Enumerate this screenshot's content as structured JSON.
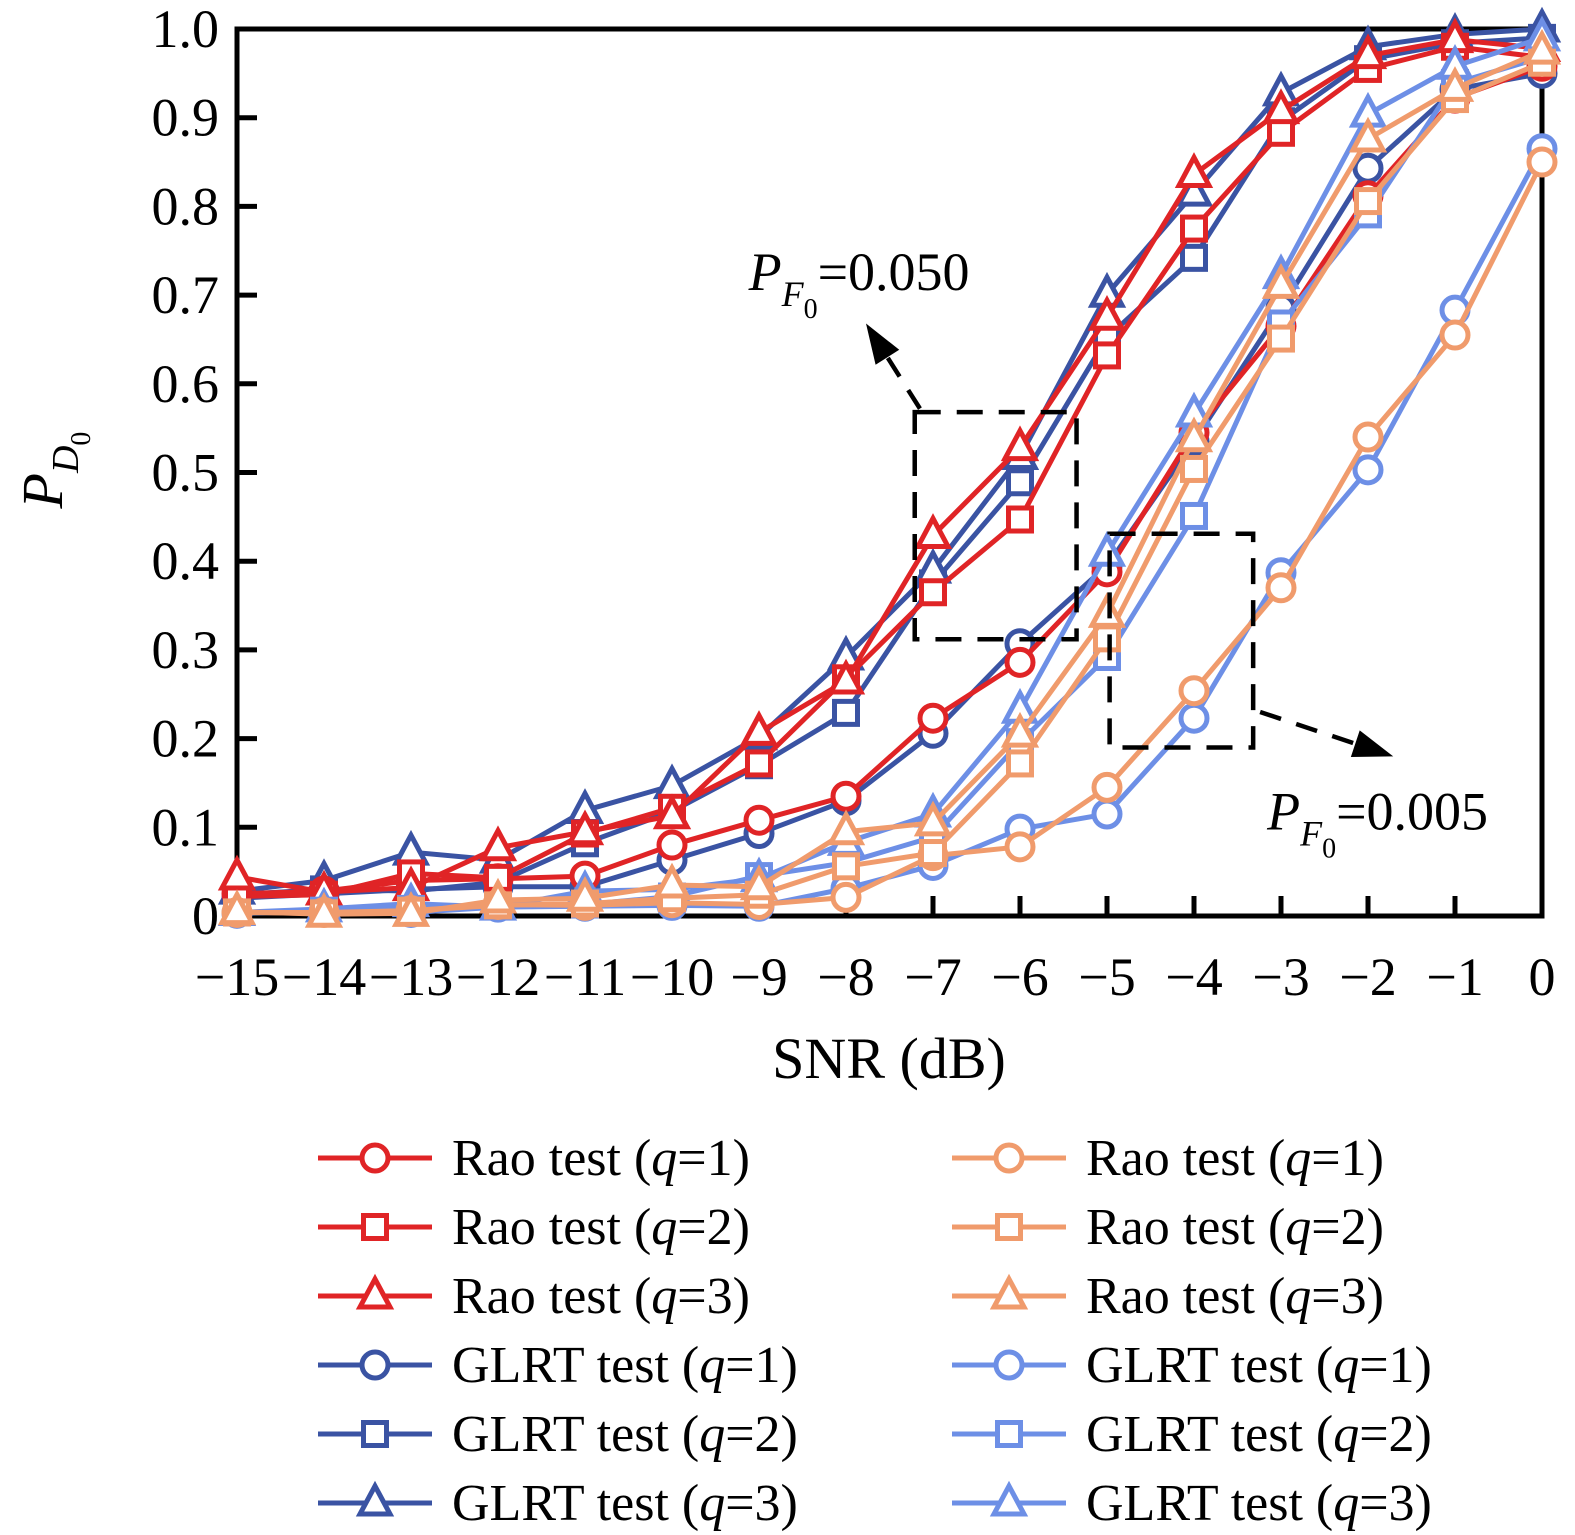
{
  "figure": {
    "background": "#ffffff",
    "axis_color": "#000000"
  },
  "chart_data": {
    "type": "line",
    "title": "",
    "xlabel": "SNR (dB)",
    "ylabel": {
      "base": "P",
      "sub": "D",
      "subsub": "0"
    },
    "xlim": [
      -15,
      0
    ],
    "ylim": [
      0,
      1.0
    ],
    "grid": false,
    "legend_position": "below-two-columns",
    "x": [
      -15,
      -14,
      -13,
      -12,
      -11,
      -10,
      -9,
      -8,
      -7,
      -6,
      -5,
      -4,
      -3,
      -2,
      -1,
      0
    ],
    "xtick_labels": [
      "−15",
      "−14",
      "−13",
      "−12",
      "−11",
      "−10",
      "−9",
      "−8",
      "−7",
      "−6",
      "−5",
      "−4",
      "−3",
      "−2",
      "−1",
      "0"
    ],
    "ytick_values": [
      0,
      0.1,
      0.2,
      0.3,
      0.4,
      0.5,
      0.6,
      0.7,
      0.8,
      0.9,
      1.0
    ],
    "ytick_labels": [
      "0",
      "0.1",
      "0.2",
      "0.3",
      "0.4",
      "0.5",
      "0.6",
      "0.7",
      "0.8",
      "0.9",
      "1.0"
    ],
    "colors": {
      "rao_pf050": "#e02426",
      "glrt_pf050": "#3a53a3",
      "rao_pf005": "#f09b6c",
      "glrt_pf005": "#6d8fe6"
    },
    "series": [
      {
        "name": "Rao test",
        "q": "1",
        "pf": "0.050",
        "color": "#e02426",
        "marker": "circle",
        "values": [
          0.025,
          0.028,
          0.04,
          0.042,
          0.045,
          0.08,
          0.108,
          0.135,
          0.223,
          0.286,
          0.388,
          0.545,
          0.665,
          0.812,
          0.922,
          0.958
        ]
      },
      {
        "name": "Rao test",
        "q": "2",
        "pf": "0.050",
        "color": "#e02426",
        "marker": "square",
        "values": [
          0.022,
          0.024,
          0.048,
          0.043,
          0.093,
          0.122,
          0.172,
          0.268,
          0.365,
          0.447,
          0.632,
          0.775,
          0.883,
          0.955,
          0.98,
          0.968
        ]
      },
      {
        "name": "Rao test",
        "q": "3",
        "pf": "0.050",
        "color": "#e02426",
        "marker": "triangle",
        "values": [
          0.044,
          0.027,
          0.032,
          0.077,
          0.095,
          0.113,
          0.207,
          0.265,
          0.429,
          0.528,
          0.675,
          0.836,
          0.908,
          0.97,
          0.988,
          0.978
        ]
      },
      {
        "name": "GLRT test",
        "q": "1",
        "pf": "0.050",
        "color": "#3a53a3",
        "marker": "circle",
        "values": [
          0.02,
          0.025,
          0.03,
          0.033,
          0.033,
          0.063,
          0.093,
          0.13,
          0.206,
          0.307,
          0.395,
          0.535,
          0.685,
          0.843,
          0.932,
          0.95
        ]
      },
      {
        "name": "GLRT test",
        "q": "2",
        "pf": "0.050",
        "color": "#3a53a3",
        "marker": "square",
        "values": [
          0.024,
          0.03,
          0.028,
          0.038,
          0.082,
          0.118,
          0.17,
          0.229,
          0.375,
          0.489,
          0.652,
          0.742,
          0.896,
          0.966,
          0.984,
          0.99
        ]
      },
      {
        "name": "GLRT test",
        "q": "3",
        "pf": "0.050",
        "color": "#3a53a3",
        "marker": "triangle",
        "values": [
          0.028,
          0.04,
          0.072,
          0.063,
          0.119,
          0.147,
          0.202,
          0.292,
          0.39,
          0.518,
          0.701,
          0.815,
          0.928,
          0.98,
          0.994,
          1.0
        ]
      },
      {
        "name": "Rao test",
        "q": "1",
        "pf": "0.005",
        "color": "#f09b6c",
        "marker": "circle",
        "values": [
          0.004,
          0.004,
          0.006,
          0.013,
          0.012,
          0.015,
          0.013,
          0.021,
          0.068,
          0.078,
          0.145,
          0.254,
          0.37,
          0.54,
          0.655,
          0.85
        ]
      },
      {
        "name": "Rao test",
        "q": "2",
        "pf": "0.005",
        "color": "#f09b6c",
        "marker": "square",
        "values": [
          0.004,
          0.003,
          0.006,
          0.012,
          0.014,
          0.02,
          0.024,
          0.056,
          0.071,
          0.172,
          0.313,
          0.504,
          0.651,
          0.806,
          0.921,
          0.962
        ]
      },
      {
        "name": "Rao test",
        "q": "3",
        "pf": "0.005",
        "color": "#f09b6c",
        "marker": "triangle",
        "values": [
          0.005,
          0.002,
          0.003,
          0.018,
          0.02,
          0.035,
          0.033,
          0.095,
          0.105,
          0.205,
          0.34,
          0.538,
          0.711,
          0.876,
          0.933,
          0.975
        ]
      },
      {
        "name": "GLRT test",
        "q": "1",
        "pf": "0.005",
        "color": "#6d8fe6",
        "marker": "circle",
        "values": [
          0.003,
          0.005,
          0.004,
          0.01,
          0.011,
          0.012,
          0.011,
          0.031,
          0.057,
          0.098,
          0.115,
          0.223,
          0.387,
          0.503,
          0.683,
          0.865
        ]
      },
      {
        "name": "GLRT test",
        "q": "2",
        "pf": "0.005",
        "color": "#6d8fe6",
        "marker": "square",
        "values": [
          0.004,
          0.006,
          0.008,
          0.011,
          0.013,
          0.022,
          0.045,
          0.06,
          0.089,
          0.196,
          0.292,
          0.451,
          0.668,
          0.791,
          0.939,
          0.968
        ]
      },
      {
        "name": "GLRT test",
        "q": "3",
        "pf": "0.005",
        "color": "#6d8fe6",
        "marker": "triangle",
        "values": [
          0.004,
          0.008,
          0.014,
          0.01,
          0.028,
          0.03,
          0.042,
          0.083,
          0.115,
          0.232,
          0.409,
          0.566,
          0.722,
          0.904,
          0.958,
          0.99
        ]
      }
    ],
    "annotations": {
      "boxes": [
        {
          "x1": -7.21,
          "x2": -5.35,
          "y1": 0.312,
          "y2": 0.568
        },
        {
          "x1": -4.97,
          "x2": -3.32,
          "y1": 0.19,
          "y2": 0.431
        }
      ],
      "arrows": [
        {
          "from_x": -7.15,
          "from_y": 0.572,
          "to_x": -7.77,
          "to_y": 0.668
        },
        {
          "from_x": -3.24,
          "from_y": 0.23,
          "to_x": -1.71,
          "to_y": 0.18
        }
      ],
      "labels": [
        {
          "base": "P",
          "sub": "F",
          "subsub": "0",
          "rest": "=0.050",
          "x": -7.85,
          "y": 0.726
        },
        {
          "base": "P",
          "sub": "F",
          "subsub": "0",
          "rest": "=0.005",
          "x": -1.89,
          "y": 0.118
        }
      ]
    }
  }
}
